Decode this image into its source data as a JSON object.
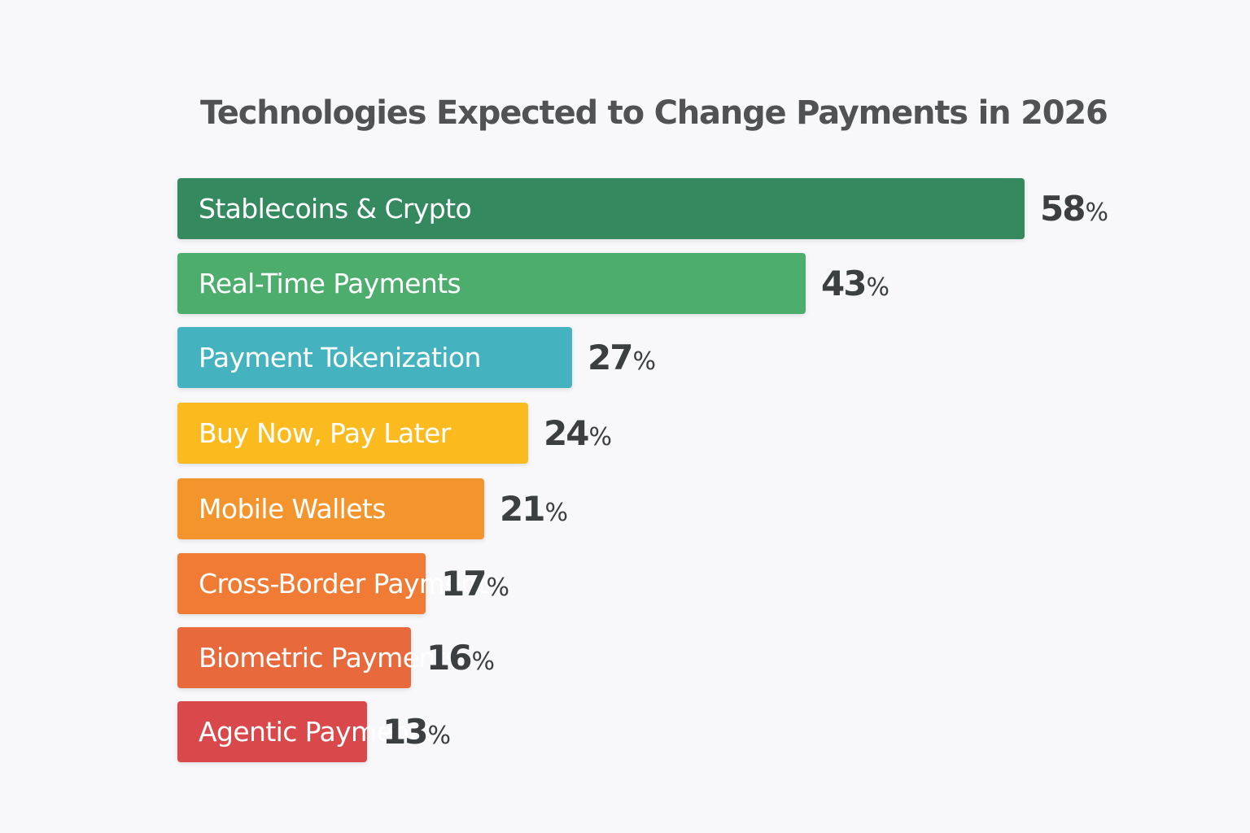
{
  "chart_data": {
    "type": "bar",
    "orientation": "horizontal",
    "title": "Technologies Expected to Change Payments in 2026",
    "xlabel": "",
    "ylabel": "",
    "unit": "%",
    "grid": false,
    "legend": null,
    "categories": [
      "Stablecoins & Crypto",
      "Real-Time Payments",
      "Payment Tokenization",
      "Buy Now, Pay Later",
      "Mobile Wallets",
      "Cross-Border Payments",
      "Biometric Payments",
      "Agentic Payments"
    ],
    "values": [
      58,
      43,
      27,
      24,
      21,
      17,
      16,
      13
    ],
    "colors": [
      "#348a5e",
      "#4cad6d",
      "#45b3bf",
      "#fbbb1e",
      "#f3952c",
      "#ef7b35",
      "#e8693c",
      "#d9484b"
    ]
  },
  "bars": [
    {
      "label": "Stablecoins & Crypto",
      "value": "58",
      "pct": "%"
    },
    {
      "label": "Real-Time Payments",
      "value": "43",
      "pct": "%"
    },
    {
      "label": "Payment Tokenization",
      "value": "27",
      "pct": "%"
    },
    {
      "label": "Buy Now, Pay Later",
      "value": "24",
      "pct": "%"
    },
    {
      "label": "Mobile Wallets",
      "value": "21",
      "pct": "%"
    },
    {
      "label": "Cross-Border Payments",
      "value": "17",
      "pct": "%"
    },
    {
      "label": "Biometric Payments",
      "value": "16",
      "pct": "%"
    },
    {
      "label": "Agentic Payments",
      "value": "13",
      "pct": "%"
    }
  ]
}
